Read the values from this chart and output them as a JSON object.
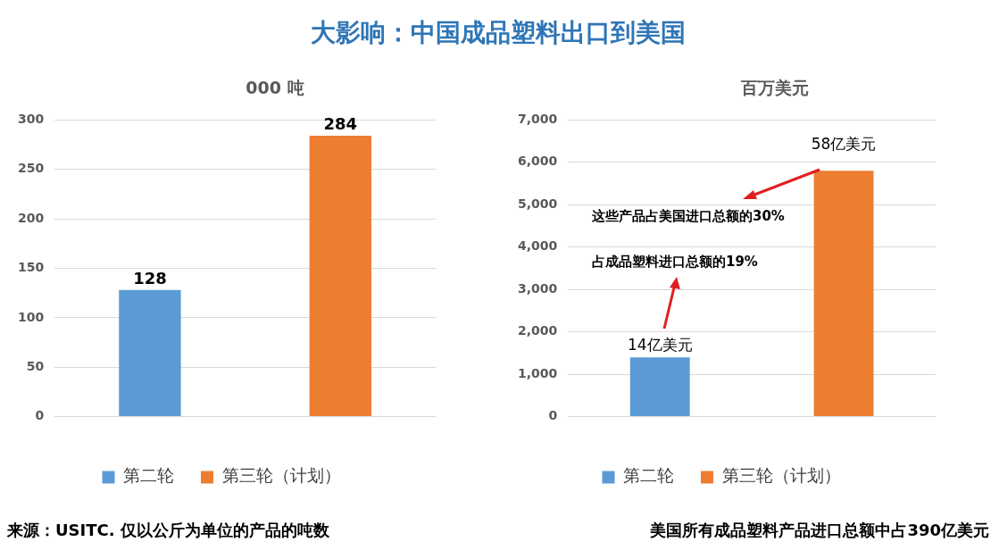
{
  "chart_data": [
    {
      "type": "bar",
      "title": "大影响：中国成品塑料出口到美国",
      "ylabel": "000 吨",
      "categories": [
        null,
        null
      ],
      "series": [
        {
          "name": "第二轮",
          "color": "#5b9bd5",
          "values": [
            128,
            null
          ]
        },
        {
          "name": "第三轮（计划）",
          "color": "#ed7d31",
          "values": [
            null,
            284
          ]
        }
      ],
      "ylim": [
        0,
        300
      ],
      "yticks": [
        0,
        50,
        100,
        150,
        200,
        250,
        300
      ],
      "grid": "y",
      "legend": "bottom",
      "data_labels": true,
      "annotations": [
        "来源：USITC. 仅以公斤为单位的产品的吨数"
      ]
    },
    {
      "type": "bar",
      "ylabel": "百万美元",
      "categories": [
        null,
        null
      ],
      "series": [
        {
          "name": "第二轮",
          "color": "#5b9bd5",
          "values": [
            1400,
            null
          ]
        },
        {
          "name": "第三轮（计划）",
          "color": "#ed7d31",
          "values": [
            null,
            5800
          ]
        }
      ],
      "ylim": [
        0,
        7000
      ],
      "yticks": [
        0,
        {
          "value": 1000,
          "label": "1,000"
        },
        {
          "value": 2000,
          "label": "2,000"
        },
        {
          "value": 3000,
          "label": "3,000"
        },
        {
          "value": 4000,
          "label": "4,000"
        },
        {
          "value": 5000,
          "label": "5,000"
        },
        {
          "value": 6000,
          "label": "6,000"
        },
        {
          "value": 7000,
          "label": "7,000"
        }
      ],
      "grid": "y",
      "legend": "bottom",
      "annotations": [
        "这些产品占美国进口总额的30%",
        "占成品塑料进口总额的19%",
        "14亿美元",
        "58亿美元",
        "美国所有成品塑料产品进口总额中占390亿美元"
      ]
    }
  ]
}
